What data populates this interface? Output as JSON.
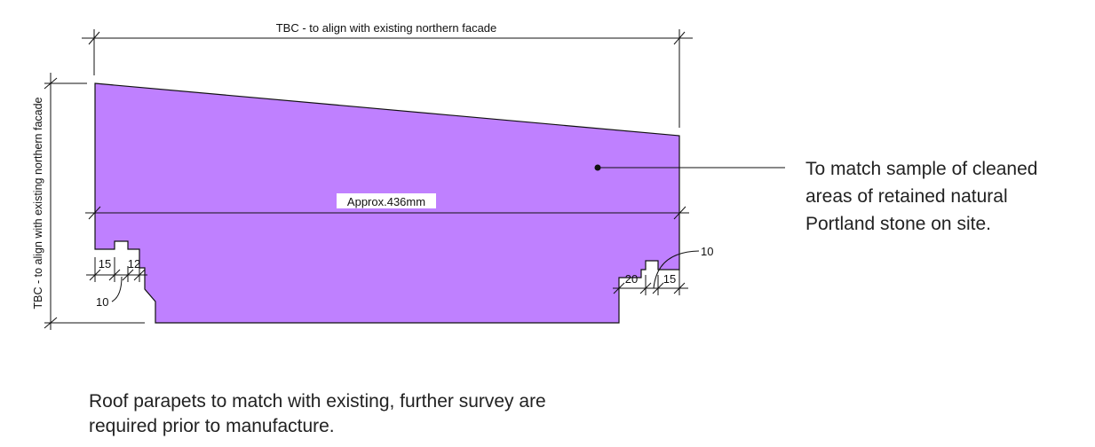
{
  "drawing": {
    "stone_fill": "#bf80ff",
    "line_color": "#111111",
    "top_dimension": "TBC - to align with existing northern facade",
    "side_dimension": "TBC - to align with existing northern facade",
    "width_dimension": "Approx.436mm",
    "left_dims": {
      "d1": "15",
      "d2": "12",
      "d3": "10"
    },
    "right_dims": {
      "d1": "20",
      "d2": "15",
      "d3": "10"
    }
  },
  "material_note": {
    "lines": [
      "To match sample of cleaned",
      "areas of retained natural",
      "Portland stone on site."
    ]
  },
  "footer_note": {
    "lines": [
      "Roof parapets to match with existing, further survey are",
      "required prior to manufacture."
    ]
  }
}
